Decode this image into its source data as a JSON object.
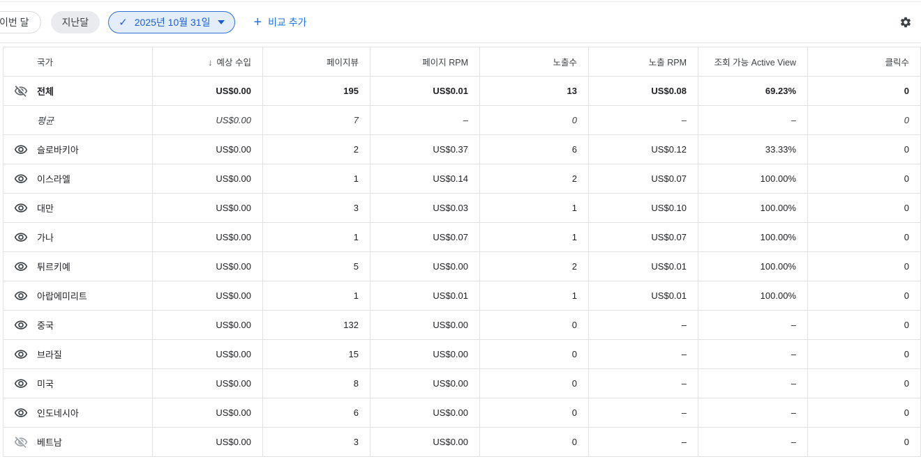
{
  "toolbar": {
    "this_month_label": "이번 달",
    "last_month_label": "지난달",
    "date_chip": {
      "check": "✓",
      "label": "2025년 10월 31일"
    },
    "add_comparison": {
      "plus": "+",
      "label": "비교 추가"
    }
  },
  "colors": {
    "accent_blue": "#1a73e8",
    "date_chip_bg": "#e4edfc",
    "date_chip_text": "#1a5fd0",
    "border_gray": "#e2e2e2"
  },
  "table": {
    "columns": [
      "국가",
      "예상 수입",
      "페이지뷰",
      "페이지 RPM",
      "노출수",
      "노출 RPM",
      "조회 가능 Active View",
      "클릭수"
    ],
    "sort_arrow": "↓",
    "sorted_column": "예상 수입",
    "rows": [
      {
        "name": "전체",
        "style": "total",
        "visibility": "hidden",
        "values": [
          "US$0.00",
          "195",
          "US$0.01",
          "13",
          "US$0.08",
          "69.23%",
          "0"
        ]
      },
      {
        "name": "평균",
        "style": "average",
        "visibility": "none",
        "values": [
          "US$0.00",
          "7",
          "–",
          "0",
          "–",
          "–",
          "0"
        ]
      },
      {
        "name": "슬로바키아",
        "style": "normal",
        "visibility": "visible",
        "values": [
          "US$0.00",
          "2",
          "US$0.37",
          "6",
          "US$0.12",
          "33.33%",
          "0"
        ]
      },
      {
        "name": "이스라엘",
        "style": "normal",
        "visibility": "visible",
        "values": [
          "US$0.00",
          "1",
          "US$0.14",
          "2",
          "US$0.07",
          "100.00%",
          "0"
        ]
      },
      {
        "name": "대만",
        "style": "normal",
        "visibility": "visible",
        "values": [
          "US$0.00",
          "3",
          "US$0.03",
          "1",
          "US$0.10",
          "100.00%",
          "0"
        ]
      },
      {
        "name": "가나",
        "style": "normal",
        "visibility": "visible",
        "values": [
          "US$0.00",
          "1",
          "US$0.07",
          "1",
          "US$0.07",
          "100.00%",
          "0"
        ]
      },
      {
        "name": "튀르키예",
        "style": "normal",
        "visibility": "visible",
        "values": [
          "US$0.00",
          "5",
          "US$0.00",
          "2",
          "US$0.01",
          "100.00%",
          "0"
        ]
      },
      {
        "name": "아랍에미리트",
        "style": "normal",
        "visibility": "visible",
        "values": [
          "US$0.00",
          "1",
          "US$0.01",
          "1",
          "US$0.01",
          "100.00%",
          "0"
        ]
      },
      {
        "name": "중국",
        "style": "normal",
        "visibility": "visible",
        "values": [
          "US$0.00",
          "132",
          "US$0.00",
          "0",
          "–",
          "–",
          "0"
        ]
      },
      {
        "name": "브라질",
        "style": "normal",
        "visibility": "visible",
        "values": [
          "US$0.00",
          "15",
          "US$0.00",
          "0",
          "–",
          "–",
          "0"
        ]
      },
      {
        "name": "미국",
        "style": "normal",
        "visibility": "visible",
        "values": [
          "US$0.00",
          "8",
          "US$0.00",
          "0",
          "–",
          "–",
          "0"
        ]
      },
      {
        "name": "인도네시아",
        "style": "normal",
        "visibility": "visible",
        "values": [
          "US$0.00",
          "6",
          "US$0.00",
          "0",
          "–",
          "–",
          "0"
        ]
      },
      {
        "name": "베트남",
        "style": "normal",
        "visibility": "hidden",
        "values": [
          "US$0.00",
          "3",
          "US$0.00",
          "0",
          "–",
          "–",
          "0"
        ]
      }
    ]
  }
}
